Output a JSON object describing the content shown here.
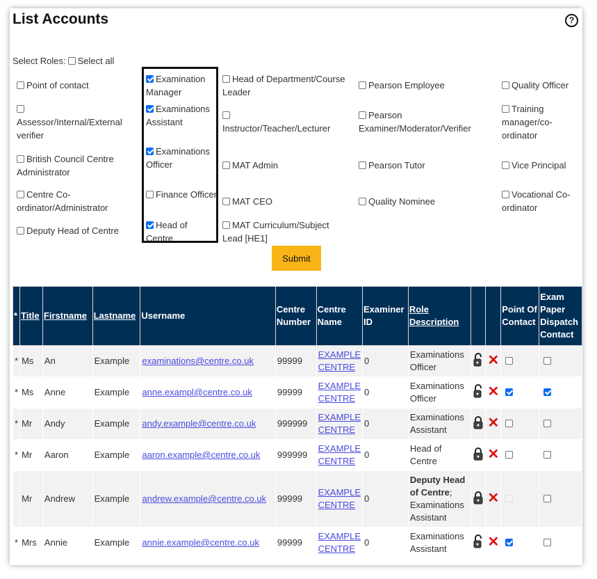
{
  "title": "List Accounts",
  "help_icon": "question-circle-icon",
  "select_roles_label": "Select Roles:",
  "select_all": {
    "label": "Select all",
    "checked": false
  },
  "roles": [
    [
      {
        "label": "Point of contact",
        "checked": false
      },
      {
        "label": "Assessor/Internal/External verifier",
        "checked": false
      },
      {
        "label": "British Council Centre Administrator",
        "checked": false
      },
      {
        "label": "Centre Co-ordinator/Administrator",
        "checked": false
      },
      {
        "label": "Deputy Head of Centre",
        "checked": false
      }
    ],
    [
      {
        "label": "Examination Manager",
        "checked": true
      },
      {
        "label": "Examinations Assistant",
        "checked": true
      },
      {
        "label": "Examinations Officer",
        "checked": true
      },
      {
        "label": "Finance Officer",
        "checked": false
      },
      {
        "label": "Head of Centre",
        "checked": true
      }
    ],
    [
      {
        "label": "Head of Department/Course Leader",
        "checked": false
      },
      {
        "label": "Instructor/Teacher/Lecturer",
        "checked": false
      },
      {
        "label": "MAT Admin",
        "checked": false
      },
      {
        "label": "MAT CEO",
        "checked": false
      },
      {
        "label": "MAT Curriculum/Subject Lead [HE1]",
        "checked": false
      }
    ],
    [
      {
        "label": "Pearson Employee",
        "checked": false
      },
      {
        "label": "Pearson Examiner/Moderator/Verifier",
        "checked": false
      },
      {
        "label": "Pearson Tutor",
        "checked": false
      },
      {
        "label": "Quality Nominee",
        "checked": false
      }
    ],
    [
      {
        "label": "Quality Officer",
        "checked": false
      },
      {
        "label": "Training manager/co-ordinator",
        "checked": false
      },
      {
        "label": "Vice Principal",
        "checked": false
      },
      {
        "label": "Vocational Co-ordinator",
        "checked": false
      }
    ]
  ],
  "submit_label": "Submit",
  "table": {
    "headers": [
      "*",
      "Title",
      "Firstname",
      "Lastname",
      "Username",
      "Centre Number",
      "Centre Name",
      "Examiner ID",
      "Role Description",
      "",
      "",
      "Point Of Contact",
      "Exam Paper Dispatch Contact"
    ],
    "sortable": [
      false,
      true,
      true,
      true,
      false,
      false,
      false,
      false,
      true,
      false,
      false,
      false,
      false
    ],
    "rows": [
      {
        "star": "*",
        "title": "Ms",
        "first": "An",
        "last": "Example",
        "username": "examinations@centre.co.uk",
        "centre_number": "99999",
        "centre_name": "EXAMPLE CENTRE",
        "examiner_id": "0",
        "role_bold": "",
        "role": "Examinations Officer",
        "lock": "unlocked",
        "poc": false,
        "poc_disabled": false,
        "dispatch": false
      },
      {
        "star": "*",
        "title": "Ms",
        "first": "Anne",
        "last": "Example",
        "username": "anne.exampl@centre.co.uk",
        "centre_number": "99999",
        "centre_name": "EXAMPLE CENTRE",
        "examiner_id": "0",
        "role_bold": "",
        "role": "Examinations Officer",
        "lock": "unlocked",
        "poc": true,
        "poc_disabled": false,
        "dispatch": true
      },
      {
        "star": "*",
        "title": "Mr",
        "first": "Andy",
        "last": "Example",
        "username": "andy.example@centre.co.uk",
        "centre_number": "999999",
        "centre_name": "EXAMPLE CENTRE",
        "examiner_id": "0",
        "role_bold": "",
        "role": "Examinations Assistant",
        "lock": "locked",
        "poc": false,
        "poc_disabled": false,
        "dispatch": false
      },
      {
        "star": "*",
        "title": "Mr",
        "first": "Aaron",
        "last": "Example",
        "username": "aaron.example@centre.co.uk",
        "centre_number": "999999",
        "centre_name": "EXAMPLE CENTRE",
        "examiner_id": "0",
        "role_bold": "",
        "role": "Head of Centre",
        "lock": "locked",
        "poc": false,
        "poc_disabled": false,
        "dispatch": false
      },
      {
        "star": "",
        "title": "Mr",
        "first": "Andrew",
        "last": "Example",
        "username": "andrew.example@centre.co.uk",
        "centre_number": "99999",
        "centre_name": "EXAMPLE CENTRE",
        "examiner_id": "0",
        "role_bold": "Deputy Head of Centre",
        "role": "; Examinations Assistant",
        "lock": "locked",
        "poc": false,
        "poc_disabled": true,
        "dispatch": false
      },
      {
        "star": "*",
        "title": "Mrs",
        "first": "Annie",
        "last": "Example",
        "username": "annie.example@centre.co.uk",
        "centre_number": "99999",
        "centre_name": "EXAMPLE CENTRE",
        "examiner_id": "0",
        "role_bold": "",
        "role": "Examinations Assistant",
        "lock": "unlocked",
        "poc": true,
        "poc_disabled": false,
        "dispatch": false
      }
    ]
  },
  "colors": {
    "header_bg": "#002f56",
    "submit_bg": "#f9b418",
    "checkbox_checked": "#0b6cf2",
    "delete": "#dd1111",
    "link": "#4b4be0"
  }
}
